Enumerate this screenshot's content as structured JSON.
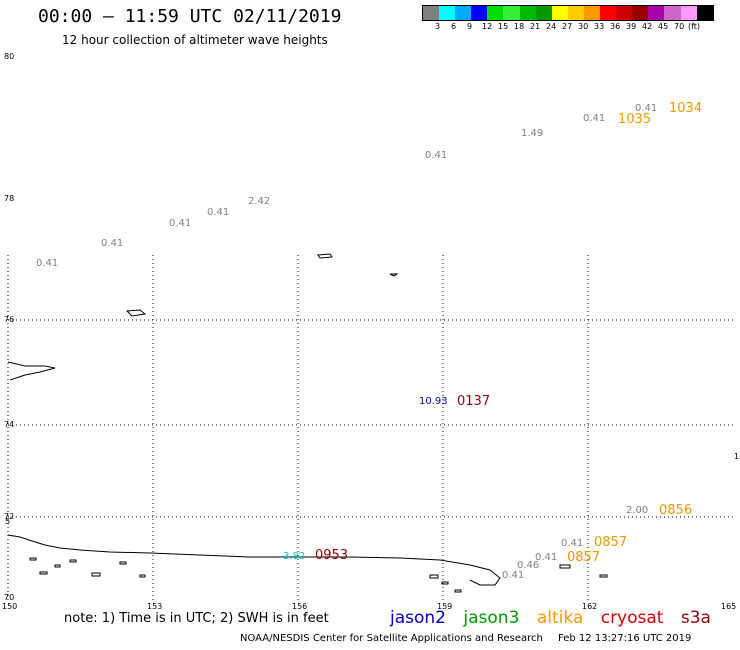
{
  "title": "00:00 — 11:59 UTC 02/11/2019",
  "subtitle": "12 hour collection of altimeter wave heights",
  "legend": {
    "colors": [
      "#7f7f7f",
      "#00ffff",
      "#00aaff",
      "#0000ff",
      "#00dd00",
      "#33ee33",
      "#00bb00",
      "#009900",
      "#ffff00",
      "#ffcc00",
      "#ff9900",
      "#ff0000",
      "#cc0000",
      "#990000",
      "#aa00aa",
      "#cc66cc",
      "#ff99ff",
      "#000000"
    ],
    "labels": [
      "3",
      "6",
      "9",
      "12",
      "15",
      "18",
      "21",
      "24",
      "27",
      "30",
      "33",
      "36",
      "39",
      "42",
      "45",
      "70",
      "(ft)"
    ]
  },
  "axes": {
    "lat_labels": [
      "80",
      "78",
      "76",
      "74",
      "72",
      "70"
    ],
    "lat_side_labels": [
      "5",
      "1"
    ],
    "lon_labels": [
      "150",
      "153",
      "156",
      "159",
      "162",
      "165"
    ]
  },
  "observations": [
    {
      "text": "0.41",
      "color": "#808080"
    },
    {
      "text": "0.41",
      "color": "#808080"
    },
    {
      "text": "0.41",
      "color": "#808080"
    },
    {
      "text": "0.41",
      "color": "#808080"
    },
    {
      "text": "2.42",
      "color": "#808080"
    },
    {
      "text": "0.41",
      "color": "#808080"
    },
    {
      "text": "1.49",
      "color": "#808080"
    },
    {
      "text": "0.41",
      "color": "#808080"
    },
    {
      "text": "0.41",
      "color": "#808080"
    },
    {
      "text": "10.93",
      "color": "#0000cc"
    },
    {
      "text": "2.00",
      "color": "#808080"
    },
    {
      "text": "0.41",
      "color": "#808080"
    },
    {
      "text": "0.41",
      "color": "#808080"
    },
    {
      "text": "3.82",
      "color": "#00cccc"
    },
    {
      "text": "0.46",
      "color": "#808080"
    },
    {
      "text": "0.41",
      "color": "#808080"
    }
  ],
  "times": [
    {
      "text": "1034",
      "color": "#ee9900"
    },
    {
      "text": "1035",
      "color": "#ee9900"
    },
    {
      "text": "0137",
      "color": "#990000"
    },
    {
      "text": "0856",
      "color": "#ee9900"
    },
    {
      "text": "0857",
      "color": "#ee9900"
    },
    {
      "text": "0857",
      "color": "#ee9900"
    },
    {
      "text": "0953",
      "color": "#990000"
    }
  ],
  "note": "note: 1) Time is in UTC; 2) SWH is in feet",
  "satellites": [
    {
      "name": "jason2",
      "color": "#0000cc"
    },
    {
      "name": "jason3",
      "color": "#009900"
    },
    {
      "name": "altika",
      "color": "#ff9900"
    },
    {
      "name": "cryosat",
      "color": "#dd0000"
    },
    {
      "name": "s3a",
      "color": "#990000"
    }
  ],
  "footer": {
    "credit": "NOAA/NESDIS Center for Satellite Applications and Research",
    "timestamp": "Feb 12 13:27:16 UTC 2019"
  }
}
